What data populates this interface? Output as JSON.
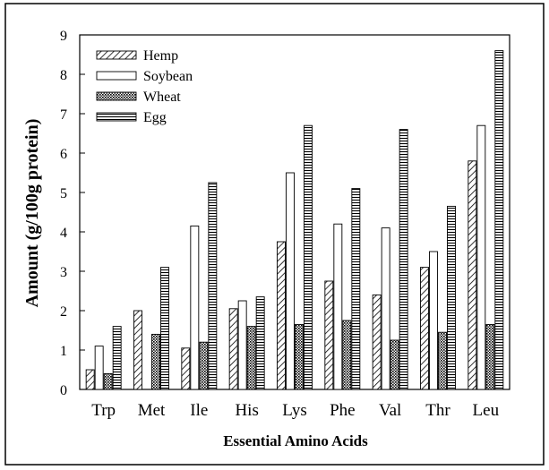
{
  "chart_data": {
    "type": "bar",
    "title": "",
    "xlabel": "Essential Amino Acids",
    "ylabel": "Amount (g/100g protein)",
    "ylim": [
      0,
      9
    ],
    "yticks": [
      "0",
      "1",
      "2",
      "3",
      "4",
      "5",
      "6",
      "7",
      "8",
      "9"
    ],
    "categories": [
      "Trp",
      "Met",
      "Ile",
      "His",
      "Lys",
      "Phe",
      "Val",
      "Thr",
      "Leu"
    ],
    "series": [
      {
        "name": "Hemp",
        "pattern": "diagonal-hatch",
        "values": [
          0.5,
          2.0,
          1.05,
          2.05,
          3.75,
          2.75,
          2.4,
          3.1,
          5.8
        ]
      },
      {
        "name": "Soybean",
        "pattern": "white",
        "values": [
          1.1,
          0.0,
          4.15,
          2.25,
          5.5,
          4.2,
          4.1,
          3.5,
          6.7
        ]
      },
      {
        "name": "Wheat",
        "pattern": "crosshatch",
        "values": [
          0.4,
          1.4,
          1.2,
          1.6,
          1.65,
          1.75,
          1.25,
          1.45,
          1.65
        ]
      },
      {
        "name": "Egg",
        "pattern": "horizontal-lines",
        "values": [
          1.6,
          3.1,
          5.25,
          2.35,
          6.7,
          5.1,
          6.6,
          4.65,
          8.6
        ]
      }
    ],
    "legend_position": "top-left",
    "grid": false
  }
}
